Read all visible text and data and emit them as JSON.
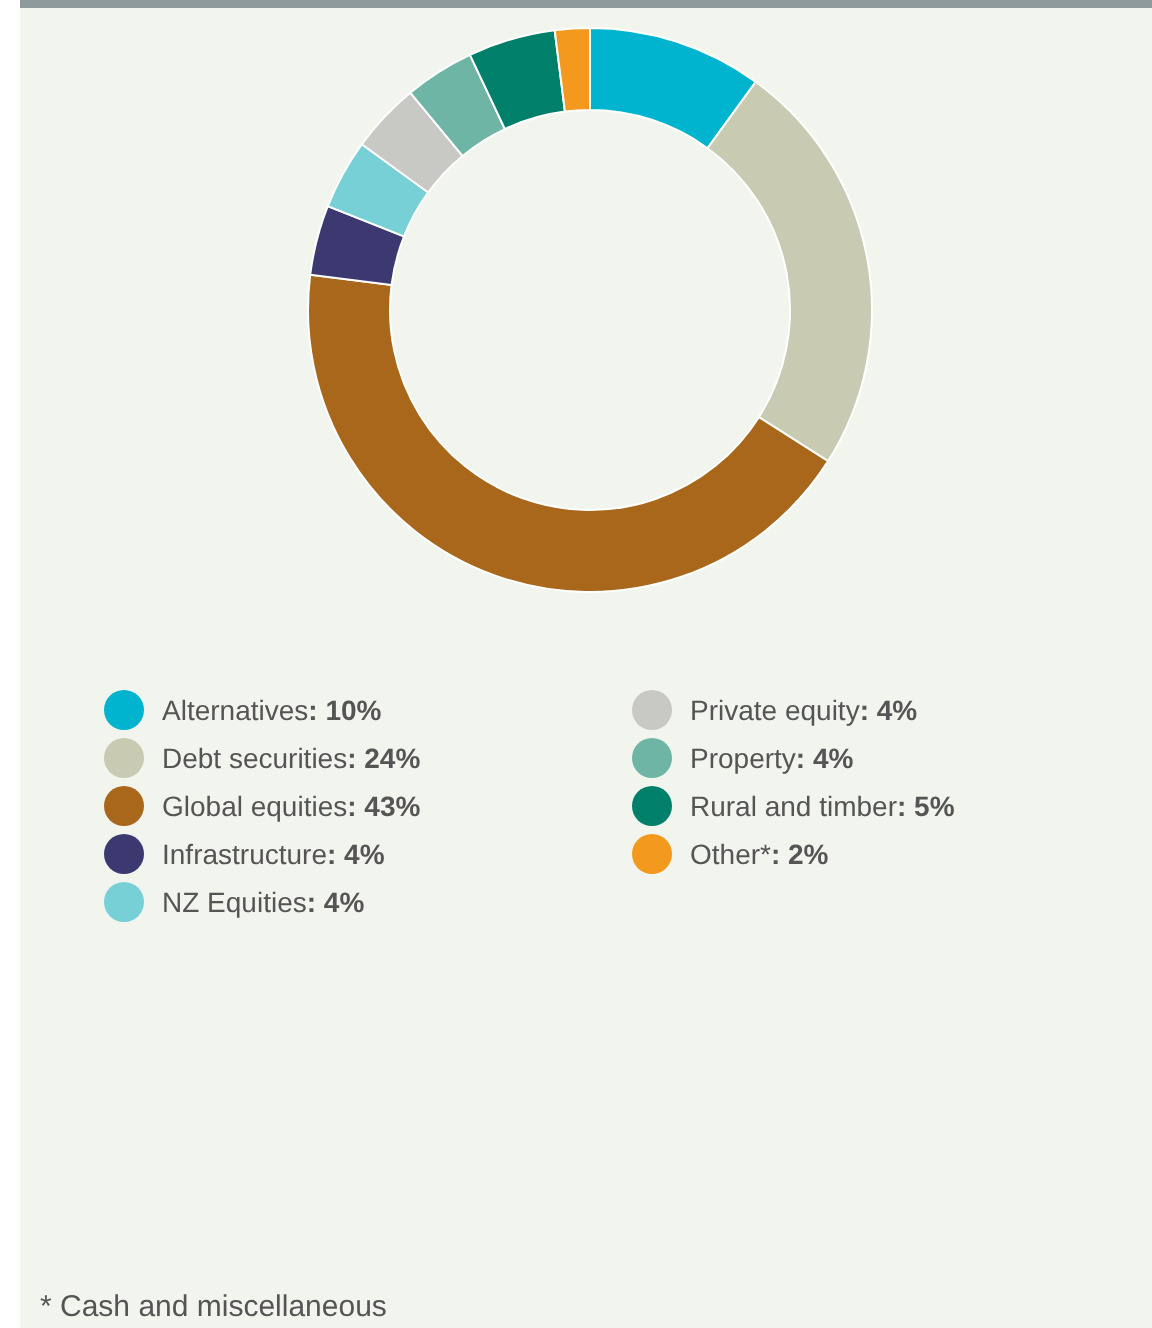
{
  "chart_data": {
    "type": "donut",
    "categories": [
      "Alternatives",
      "Debt securities",
      "Global equities",
      "Infrastructure",
      "NZ Equities",
      "Private equity",
      "Property",
      "Rural and timber",
      "Other*"
    ],
    "values": [
      10,
      24,
      43,
      4,
      4,
      4,
      4,
      5,
      2
    ],
    "value_labels": [
      ": 10%",
      ": 24%",
      ": 43%",
      ": 4%",
      ": 4%",
      ": 4%",
      ": 4%",
      ": 5%",
      ": 2%"
    ],
    "colors": [
      "#00b3cf",
      "#c8cab2",
      "#a8671a",
      "#3b3970",
      "#76d0d6",
      "#c8c8c4",
      "#6fb5a6",
      "#00806a",
      "#f39a1e"
    ],
    "legend": "bottom",
    "annotations": [
      "* Cash and miscellaneous"
    ]
  }
}
